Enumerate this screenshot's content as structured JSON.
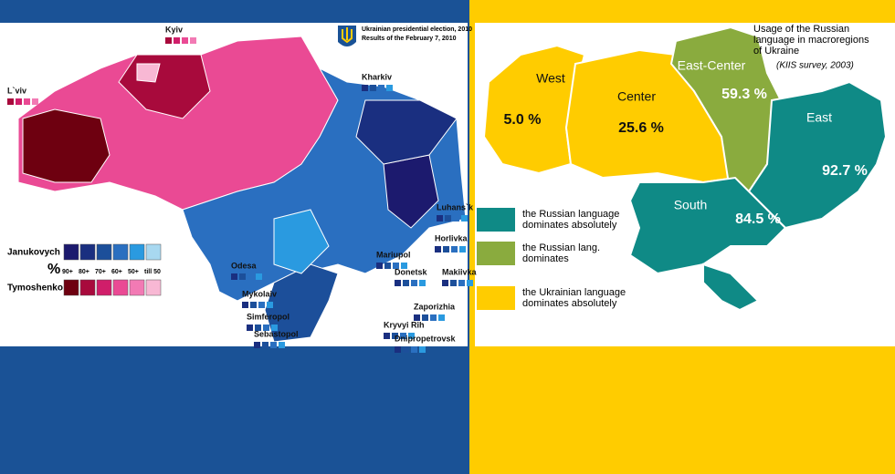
{
  "election_map": {
    "title": "Ukrainian presidential election, 2010",
    "subtitle": "Results of the February 7, 2010",
    "cities": [
      "Kyiv",
      "L`viv",
      "Kharkiv",
      "Luhans`k",
      "Horlivka",
      "Mariupol",
      "Donetsk",
      "Makiivka",
      "Zaporizhia",
      "Kryvyi Rih",
      "Dnipropetrovsk",
      "Odesa",
      "Mykolaiv",
      "Simferopol",
      "Sebastopol"
    ],
    "legend": {
      "percent_symbol": "%",
      "scale": [
        "90+",
        "80+",
        "70+",
        "60+",
        "50+",
        "till 50"
      ],
      "rows": [
        {
          "label": "Janukovych",
          "colors": [
            "#1c1a6e",
            "#1a2f80",
            "#1c4f9a",
            "#2a6fc0",
            "#2a9ae0",
            "#a8d8f0"
          ]
        },
        {
          "label": "Tymoshenko",
          "colors": [
            "#6e0010",
            "#a80a3c",
            "#d01e6a",
            "#ea4a94",
            "#f27ab4",
            "#f8b8d4"
          ]
        }
      ]
    }
  },
  "language_map": {
    "title_lines": [
      "Usage of the Russian",
      "language in macroregions",
      "of Ukraine"
    ],
    "source": "(KIIS survey, 2003)",
    "regions": [
      {
        "name": "West",
        "value": "5.0 %",
        "color": "#ffcc00"
      },
      {
        "name": "Center",
        "value": "25.6 %",
        "color": "#ffcc00"
      },
      {
        "name": "East-Center",
        "value": "59.3 %",
        "color": "#8aab3e"
      },
      {
        "name": "East",
        "value": "92.7 %",
        "color": "#0f8a86"
      },
      {
        "name": "South",
        "value": "84.5 %",
        "color": "#0f8a86"
      }
    ],
    "legend": [
      {
        "lines": [
          "the Russian language",
          "dominates absolutely"
        ],
        "color": "#0f8a86"
      },
      {
        "lines": [
          "the Russian lang.",
          "dominates"
        ],
        "color": "#8aab3e"
      },
      {
        "lines": [
          "the Ukrainian language",
          "dominates  absolutely"
        ],
        "color": "#ffcc00"
      }
    ]
  }
}
